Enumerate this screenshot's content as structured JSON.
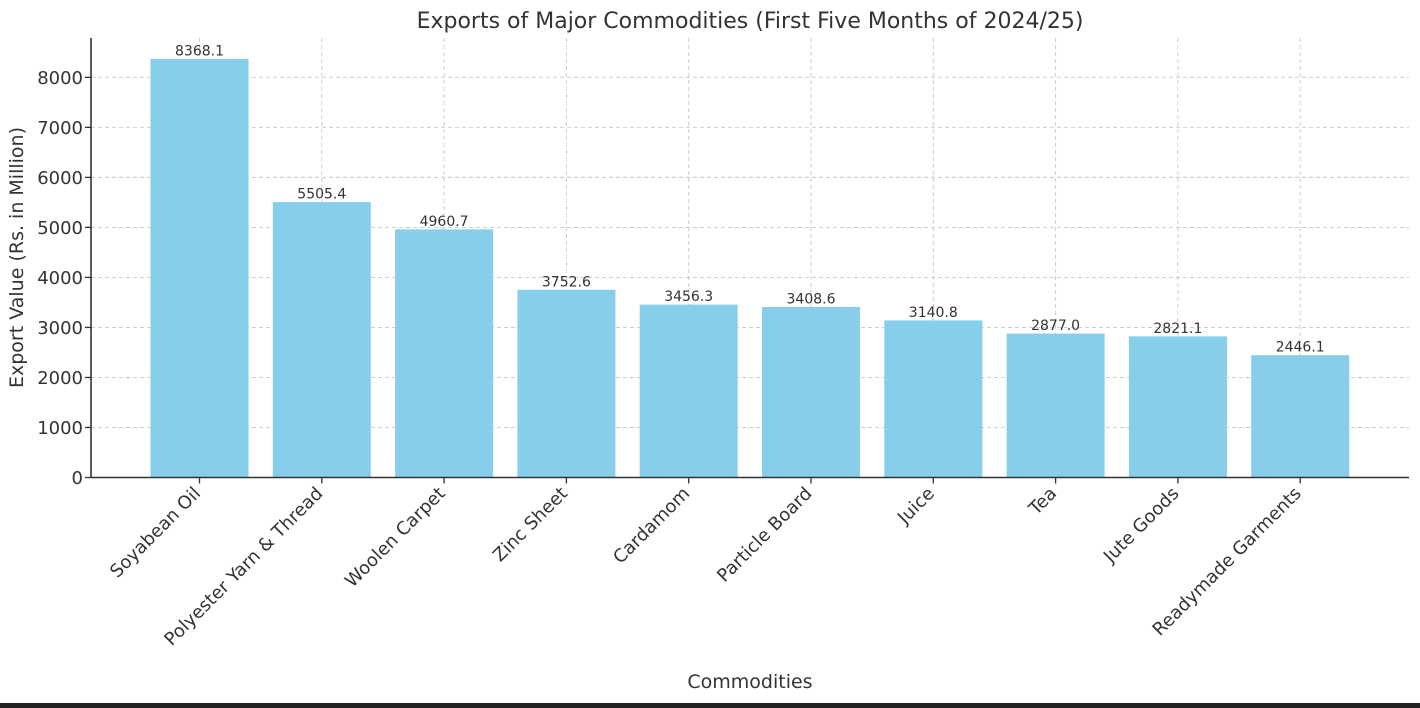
{
  "chart_data": {
    "type": "bar",
    "title": "Exports of Major Commodities (First Five Months of 2024/25)",
    "xlabel": "Commodities",
    "ylabel": "Export Value (Rs. in Million)",
    "categories": [
      "Soyabean Oil",
      "Polyester Yarn & Thread",
      "Woolen Carpet",
      "Zinc Sheet",
      "Cardamom",
      "Particle Board",
      "Juice",
      "Tea",
      "Jute Goods",
      "Readymade Garments"
    ],
    "values": [
      8368.1,
      5505.4,
      4960.7,
      3752.6,
      3456.3,
      3408.6,
      3140.8,
      2877.0,
      2821.1,
      2446.1
    ],
    "value_labels": [
      "8368.1",
      "5505.4",
      "4960.7",
      "3752.6",
      "3456.3",
      "3408.6",
      "3140.8",
      "2877.0",
      "2821.1",
      "2446.1"
    ],
    "yticks": [
      0,
      1000,
      2000,
      3000,
      4000,
      5000,
      6000,
      7000,
      8000
    ],
    "ylim": [
      0,
      8786.5
    ],
    "grid": true,
    "bar_color": "#87CEEB"
  }
}
